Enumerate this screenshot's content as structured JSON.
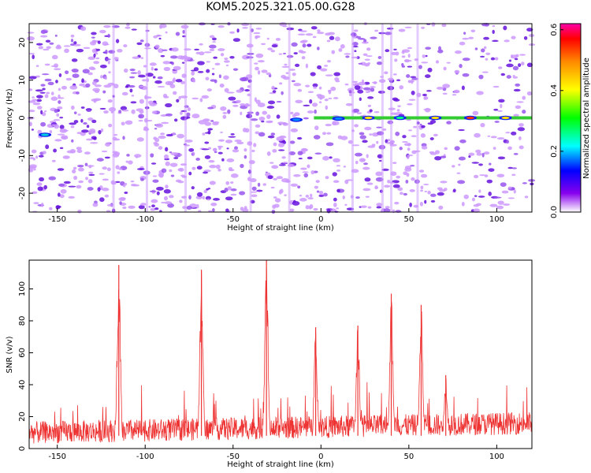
{
  "title": "KOM5.2025.321.05.00.G28",
  "colors": {
    "line": "#ee3333",
    "dot_light": "#cc99ff",
    "dot_mid": "#9955ee",
    "dot_dark": "#6611dd",
    "axis": "#000000"
  },
  "chart_data": [
    {
      "type": "heatmap",
      "title": "",
      "xlabel": "Height of straight line (km)",
      "ylabel": "Frequency (Hz)",
      "xlim": [
        -166,
        120
      ],
      "ylim": [
        -25,
        25
      ],
      "x_ticks": [
        -150,
        -100,
        -50,
        0,
        50,
        100
      ],
      "x_tick_labels": [
        "-150",
        "-100",
        "-50",
        "0",
        "50",
        "100"
      ],
      "y_ticks": [
        -20,
        -10,
        0,
        10,
        20
      ],
      "y_tick_labels": [
        "-20",
        "-10",
        "0",
        "10",
        "20"
      ],
      "colorbar": {
        "label": "Normalized spectral amplitude",
        "range": [
          0.0,
          0.62
        ],
        "ticks": [
          0.0,
          0.2,
          0.4,
          0.6
        ],
        "tick_labels": [
          "0.0",
          "0.2",
          "0.4",
          "0.6"
        ]
      },
      "ridge": {
        "frequency": 0,
        "points": [
          {
            "x": -157,
            "y": -4.5,
            "value": 0.18
          },
          {
            "x": -14,
            "y": -0.5,
            "value": 0.22
          },
          {
            "x": 10,
            "y": -0.2,
            "value": 0.22
          },
          {
            "x": 27,
            "y": 0,
            "value": 0.42
          },
          {
            "x": 45,
            "y": 0,
            "value": 0.4
          },
          {
            "x": 65,
            "y": 0,
            "value": 0.45
          },
          {
            "x": 85,
            "y": 0,
            "value": 0.55
          },
          {
            "x": 105,
            "y": 0,
            "value": 0.5
          }
        ]
      }
    },
    {
      "type": "line",
      "title": "",
      "xlabel": "Height of straight line (km)",
      "ylabel": "SNR (v/v)",
      "xlim": [
        -166,
        120
      ],
      "ylim": [
        0,
        118
      ],
      "x_ticks": [
        -150,
        -100,
        -50,
        0,
        50,
        100
      ],
      "x_tick_labels": [
        "-150",
        "-100",
        "-50",
        "0",
        "50",
        "100"
      ],
      "y_ticks": [
        0,
        20,
        40,
        60,
        80,
        100
      ],
      "y_tick_labels": [
        "0",
        "20",
        "40",
        "60",
        "80",
        "100"
      ],
      "baseline": {
        "start": 10,
        "end": 16
      },
      "peaks": [
        {
          "x": -115,
          "y": 115
        },
        {
          "x": -68,
          "y": 112
        },
        {
          "x": -31,
          "y": 118
        },
        {
          "x": -3,
          "y": 76
        },
        {
          "x": 21,
          "y": 77
        },
        {
          "x": 40,
          "y": 97
        },
        {
          "x": 57,
          "y": 90
        },
        {
          "x": 71,
          "y": 46
        }
      ]
    }
  ]
}
